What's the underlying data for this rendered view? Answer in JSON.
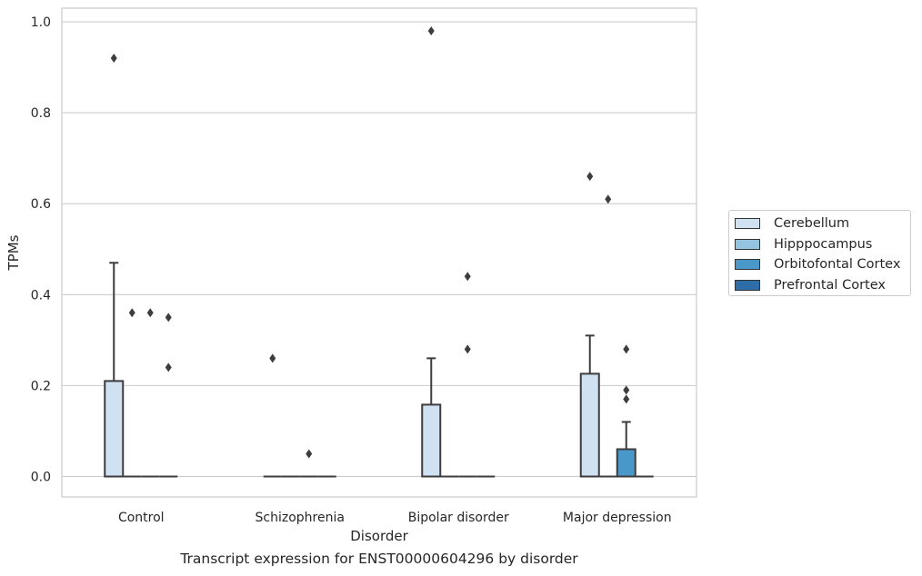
{
  "caption": "Transcript expression for ENST00000604296 by disorder",
  "chart_data": {
    "type": "box",
    "xlabel": "Disorder",
    "ylabel": "TPMs",
    "title": "",
    "ylim": [
      -0.045,
      1.03
    ],
    "yticks": [
      0.0,
      0.2,
      0.4,
      0.6,
      0.8,
      1.0
    ],
    "ytick_labels": [
      "0.0",
      "0.2",
      "0.4",
      "0.6",
      "0.8",
      "1.0"
    ],
    "grid": "horizontal",
    "legend_position": "right",
    "categories": [
      "Control",
      "Schizophrenia",
      "Bipolar disorder",
      "Major depression"
    ],
    "series": [
      {
        "name": "Cerebellum",
        "color": "#d0e1f2",
        "boxes": [
          {
            "whisker_low": 0.0,
            "q1": 0.0,
            "median": 0.0,
            "q3": 0.21,
            "whisker_high": 0.47,
            "outliers": [
              0.92
            ]
          },
          {
            "whisker_low": 0.0,
            "q1": 0.0,
            "median": 0.0,
            "q3": 0.0,
            "whisker_high": 0.0,
            "outliers": [
              0.26
            ]
          },
          {
            "whisker_low": 0.0,
            "q1": 0.0,
            "median": 0.0,
            "q3": 0.158,
            "whisker_high": 0.26,
            "outliers": [
              0.98
            ]
          },
          {
            "whisker_low": 0.0,
            "q1": 0.0,
            "median": 0.0,
            "q3": 0.226,
            "whisker_high": 0.31,
            "outliers": [
              0.66
            ]
          }
        ]
      },
      {
        "name": "Hipppocampus",
        "color": "#94c4df",
        "boxes": [
          {
            "whisker_low": 0.0,
            "q1": 0.0,
            "median": 0.0,
            "q3": 0.0,
            "whisker_high": 0.0,
            "outliers": [
              0.36
            ]
          },
          {
            "whisker_low": 0.0,
            "q1": 0.0,
            "median": 0.0,
            "q3": 0.0,
            "whisker_high": 0.0,
            "outliers": []
          },
          {
            "whisker_low": 0.0,
            "q1": 0.0,
            "median": 0.0,
            "q3": 0.0,
            "whisker_high": 0.0,
            "outliers": []
          },
          {
            "whisker_low": 0.0,
            "q1": 0.0,
            "median": 0.0,
            "q3": 0.0,
            "whisker_high": 0.0,
            "outliers": [
              0.61
            ]
          }
        ]
      },
      {
        "name": "Orbitofontal Cortex",
        "color": "#4a98c9",
        "boxes": [
          {
            "whisker_low": 0.0,
            "q1": 0.0,
            "median": 0.0,
            "q3": 0.0,
            "whisker_high": 0.0,
            "outliers": [
              0.36
            ]
          },
          {
            "whisker_low": 0.0,
            "q1": 0.0,
            "median": 0.0,
            "q3": 0.0,
            "whisker_high": 0.0,
            "outliers": [
              0.05
            ]
          },
          {
            "whisker_low": 0.0,
            "q1": 0.0,
            "median": 0.0,
            "q3": 0.0,
            "whisker_high": 0.0,
            "outliers": [
              0.44,
              0.28
            ]
          },
          {
            "whisker_low": 0.0,
            "q1": 0.0,
            "median": 0.0,
            "q3": 0.06,
            "whisker_high": 0.12,
            "outliers": [
              0.28,
              0.19,
              0.17
            ]
          }
        ]
      },
      {
        "name": "Prefrontal Cortex",
        "color": "#2e6ea8",
        "boxes": [
          {
            "whisker_low": 0.0,
            "q1": 0.0,
            "median": 0.0,
            "q3": 0.0,
            "whisker_high": 0.0,
            "outliers": [
              0.35,
              0.24
            ]
          },
          {
            "whisker_low": 0.0,
            "q1": 0.0,
            "median": 0.0,
            "q3": 0.0,
            "whisker_high": 0.0,
            "outliers": []
          },
          {
            "whisker_low": 0.0,
            "q1": 0.0,
            "median": 0.0,
            "q3": 0.0,
            "whisker_high": 0.0,
            "outliers": []
          },
          {
            "whisker_low": 0.0,
            "q1": 0.0,
            "median": 0.0,
            "q3": 0.0,
            "whisker_high": 0.0,
            "outliers": []
          }
        ]
      }
    ]
  }
}
